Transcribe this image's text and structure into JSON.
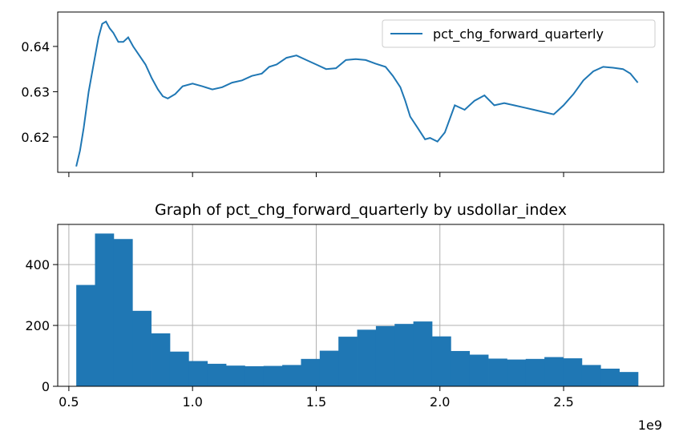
{
  "chart_data": [
    {
      "type": "line",
      "title": "",
      "xlabel": "",
      "ylabel": "",
      "xlim": [
        455000000,
        2905000000
      ],
      "ylim": [
        0.6122,
        0.6476
      ],
      "yticks": [
        0.62,
        0.63,
        0.64
      ],
      "ytick_labels": [
        "0.62",
        "0.63",
        "0.64"
      ],
      "xticks": [
        500000000,
        1000000000,
        1500000000,
        2000000000,
        2500000000
      ],
      "grid": false,
      "legend_position": "top-right",
      "series": [
        {
          "name": "pct_chg_forward_quarterly",
          "color": "#1f77b4",
          "x": [
            530000000,
            545000000,
            560000000,
            580000000,
            600000000,
            620000000,
            635000000,
            650000000,
            665000000,
            680000000,
            700000000,
            720000000,
            740000000,
            760000000,
            785000000,
            810000000,
            835000000,
            860000000,
            880000000,
            900000000,
            930000000,
            960000000,
            1000000000,
            1040000000,
            1080000000,
            1120000000,
            1160000000,
            1200000000,
            1240000000,
            1280000000,
            1310000000,
            1340000000,
            1380000000,
            1420000000,
            1460000000,
            1500000000,
            1540000000,
            1580000000,
            1620000000,
            1660000000,
            1700000000,
            1740000000,
            1780000000,
            1810000000,
            1840000000,
            1860000000,
            1880000000,
            1910000000,
            1940000000,
            1960000000,
            1990000000,
            2020000000,
            2060000000,
            2100000000,
            2140000000,
            2180000000,
            2220000000,
            2260000000,
            2300000000,
            2340000000,
            2380000000,
            2420000000,
            2460000000,
            2500000000,
            2540000000,
            2580000000,
            2620000000,
            2660000000,
            2700000000,
            2740000000,
            2770000000,
            2800000000
          ],
          "values": [
            0.6135,
            0.617,
            0.622,
            0.63,
            0.636,
            0.642,
            0.645,
            0.6455,
            0.644,
            0.643,
            0.641,
            0.641,
            0.642,
            0.64,
            0.638,
            0.636,
            0.633,
            0.6305,
            0.629,
            0.6285,
            0.6295,
            0.6312,
            0.6318,
            0.6312,
            0.6305,
            0.631,
            0.632,
            0.6325,
            0.6335,
            0.634,
            0.6355,
            0.636,
            0.6375,
            0.638,
            0.637,
            0.636,
            0.635,
            0.6352,
            0.637,
            0.6372,
            0.637,
            0.6362,
            0.6355,
            0.6335,
            0.631,
            0.628,
            0.6245,
            0.622,
            0.6195,
            0.6198,
            0.619,
            0.621,
            0.627,
            0.626,
            0.628,
            0.6292,
            0.627,
            0.6275,
            0.627,
            0.6265,
            0.626,
            0.6255,
            0.625,
            0.627,
            0.6295,
            0.6325,
            0.6345,
            0.6355,
            0.6353,
            0.635,
            0.634,
            0.632
          ]
        }
      ]
    },
    {
      "type": "bar",
      "title": "Graph of pct_chg_forward_quarterly by usdollar_index",
      "xlabel": "",
      "ylabel": "",
      "xlim": [
        455000000,
        2905000000
      ],
      "ylim": [
        0,
        532
      ],
      "yticks": [
        0,
        200,
        400
      ],
      "ytick_labels": [
        "0",
        "200",
        "400"
      ],
      "xticks": [
        500000000,
        1000000000,
        1500000000,
        2000000000,
        2500000000
      ],
      "xtick_labels": [
        "0.5",
        "1.0",
        "1.5",
        "2.0",
        "2.5"
      ],
      "x_offset_label": "1e9",
      "grid": true,
      "color": "#1f77b4",
      "bin_start": 530000000,
      "bin_width": 75700000,
      "values": [
        333,
        502,
        484,
        248,
        174,
        114,
        83,
        74,
        68,
        66,
        67,
        70,
        90,
        117,
        163,
        186,
        198,
        205,
        213,
        164,
        116,
        104,
        91,
        88,
        90,
        96,
        92,
        70,
        58,
        47
      ]
    }
  ]
}
